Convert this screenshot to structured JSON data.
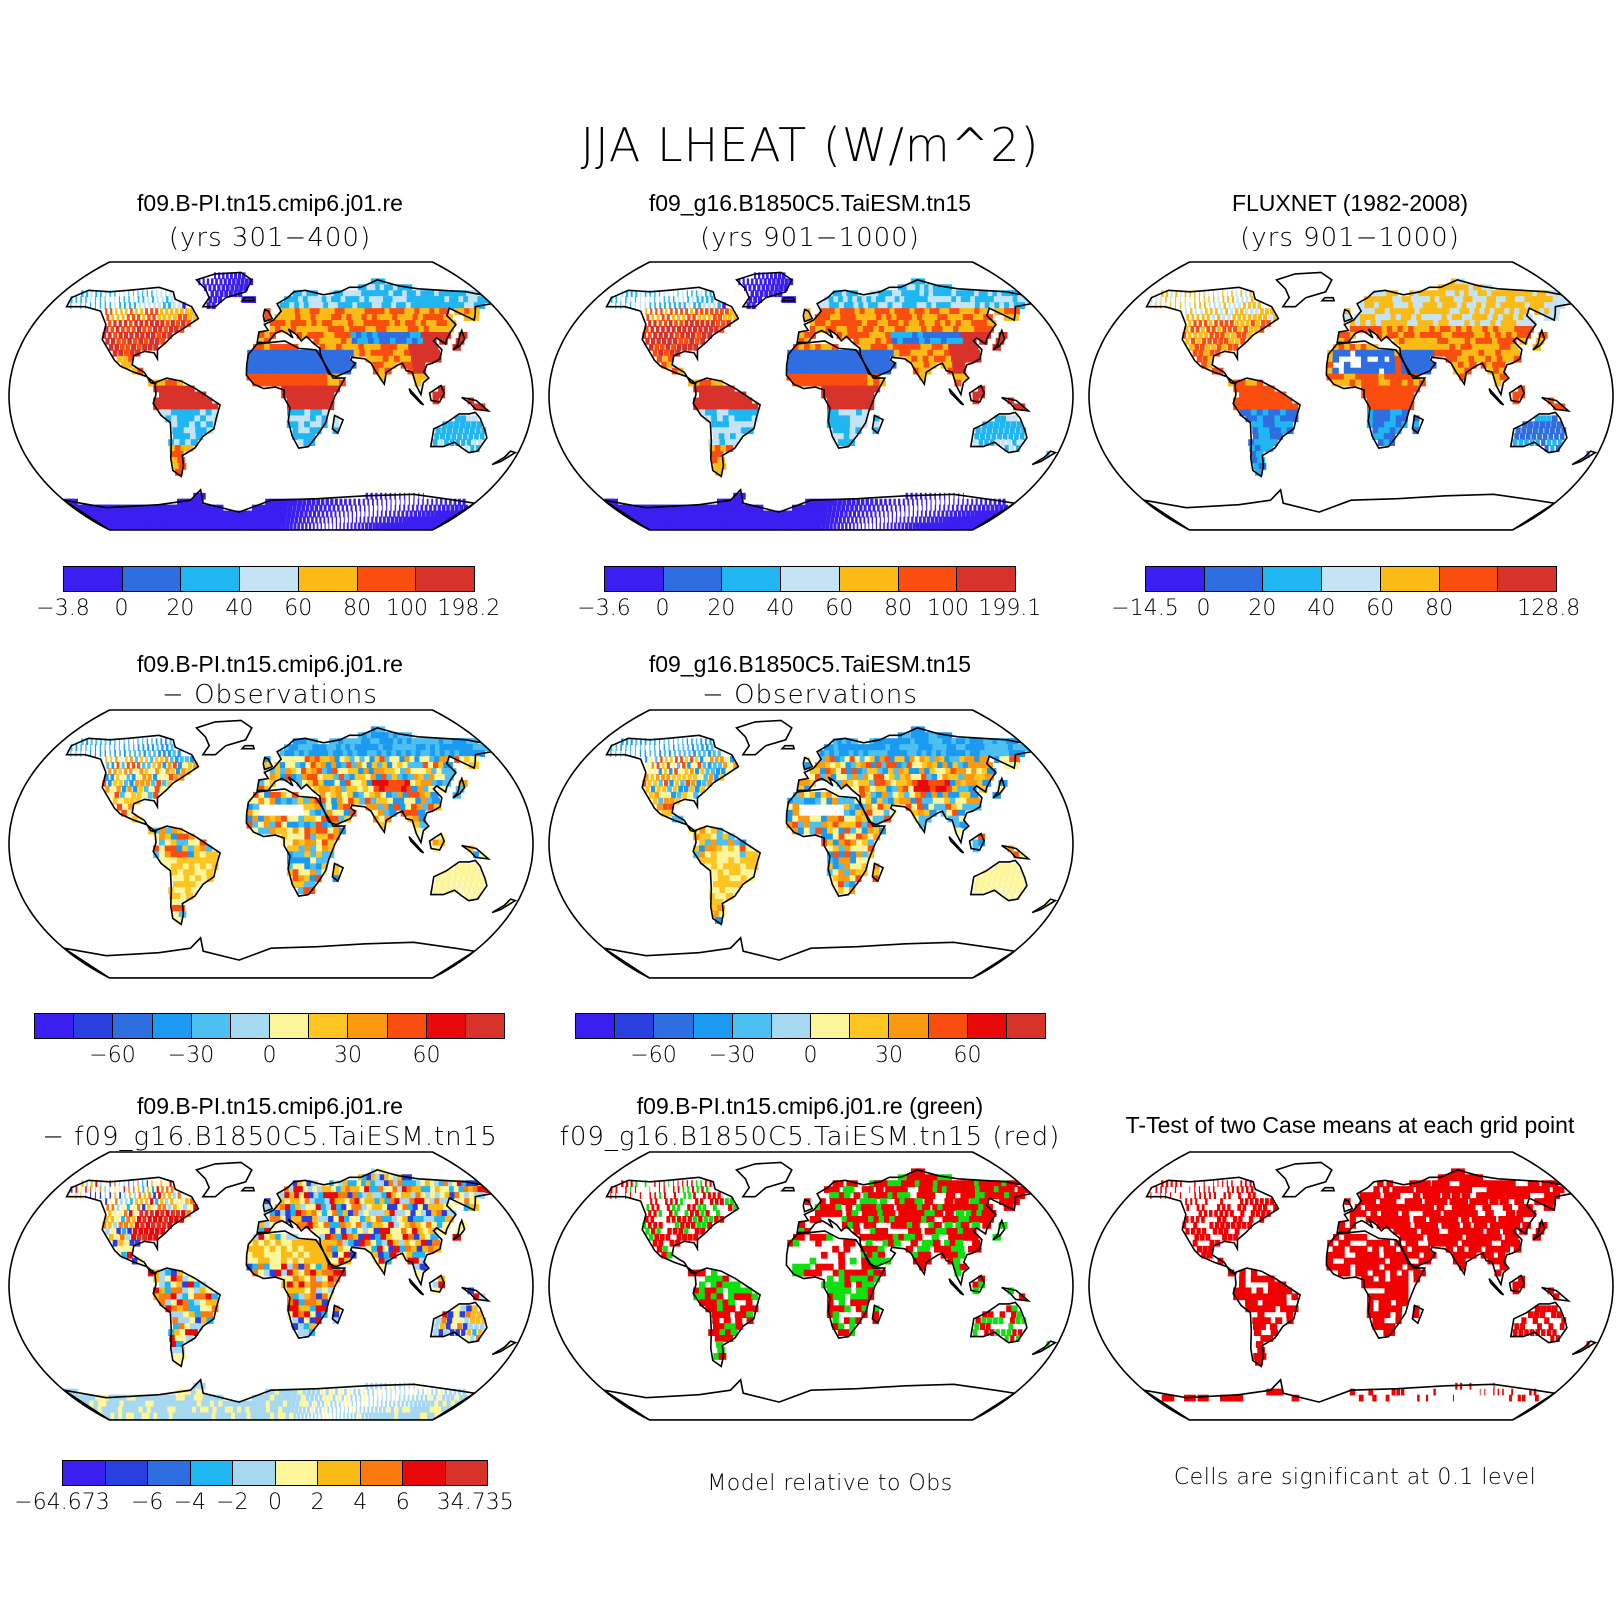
{
  "title": "JJA LHEAT (W/m^2)",
  "colors": {
    "pal8": [
      "#3b1ff0",
      "#2f6ee0",
      "#1fb6f2",
      "#c4e4f5",
      "#fbbb16",
      "#f94e10",
      "#d8332b"
    ],
    "pal12": [
      "#3b1ff0",
      "#2a3fe0",
      "#2f6ee0",
      "#1a9af0",
      "#4dbff0",
      "#a6d8f2",
      "#fdf59a",
      "#fdc522",
      "#fb9a10",
      "#f94e10",
      "#e80a0a",
      "#d8332b"
    ],
    "pal10": [
      "#3b1ff0",
      "#2a3fe0",
      "#2f6ee0",
      "#1fb6f2",
      "#a6d8f2",
      "#fdf59a",
      "#fbbb16",
      "#fb7a10",
      "#e80a0a",
      "#d8332b"
    ],
    "sig_red": "#f00000",
    "sig_green": "#10e010"
  },
  "panels": [
    {
      "id": "p1",
      "line1": "f09.B-PI.tn15.cmip6.j01.re",
      "line2": "(yrs 301−400)",
      "style": "model"
    },
    {
      "id": "p2",
      "line1": "f09_g16.B1850C5.TaiESM.tn15",
      "line2": "(yrs 901−1000)",
      "style": "model"
    },
    {
      "id": "p3",
      "line1": "FLUXNET (1982-2008)",
      "line2": "(yrs 901−1000)",
      "style": "obs"
    },
    {
      "id": "p4",
      "line1": "f09.B-PI.tn15.cmip6.j01.re",
      "line2": "− Observations",
      "style": "diff"
    },
    {
      "id": "p5",
      "line1": "f09_g16.B1850C5.TaiESM.tn15",
      "line2": "− Observations",
      "style": "diff"
    },
    {
      "id": "p7",
      "line1": "f09.B-PI.tn15.cmip6.j01.re",
      "line2": "− f09_g16.B1850C5.TaiESM.tn15",
      "style": "casediff"
    },
    {
      "id": "p8",
      "line1": "f09.B-PI.tn15.cmip6.j01.re (green)",
      "line2": "f09_g16.B1850C5.TaiESM.tn15 (red)",
      "style": "compare"
    },
    {
      "id": "p9",
      "line1": "T-Test of two Case means at each grid point",
      "line2": "",
      "style": "ttest"
    }
  ],
  "colorbars": [
    {
      "id": "cb1",
      "labels": [
        "−3.8",
        "0",
        "20",
        "40",
        "60",
        "80",
        "100",
        "198.2"
      ]
    },
    {
      "id": "cb2",
      "labels": [
        "−3.6",
        "0",
        "20",
        "40",
        "60",
        "80",
        "100",
        "199.1"
      ]
    },
    {
      "id": "cb3",
      "labels": [
        "−14.5",
        "0",
        "20",
        "40",
        "60",
        "80",
        "128.8"
      ]
    },
    {
      "id": "cb4",
      "labels": [
        "−60",
        "−30",
        "0",
        "30",
        "60"
      ]
    },
    {
      "id": "cb5",
      "labels": [
        "−60",
        "−30",
        "0",
        "30",
        "60"
      ]
    },
    {
      "id": "cb7",
      "labels": [
        "−64.673",
        "−6",
        "−4",
        "−2",
        "0",
        "2",
        "4",
        "6",
        "34.735"
      ]
    }
  ],
  "notes": {
    "model_relative": "Model relative to Obs",
    "cells_significant": "Cells are significant at 0.1 level"
  }
}
